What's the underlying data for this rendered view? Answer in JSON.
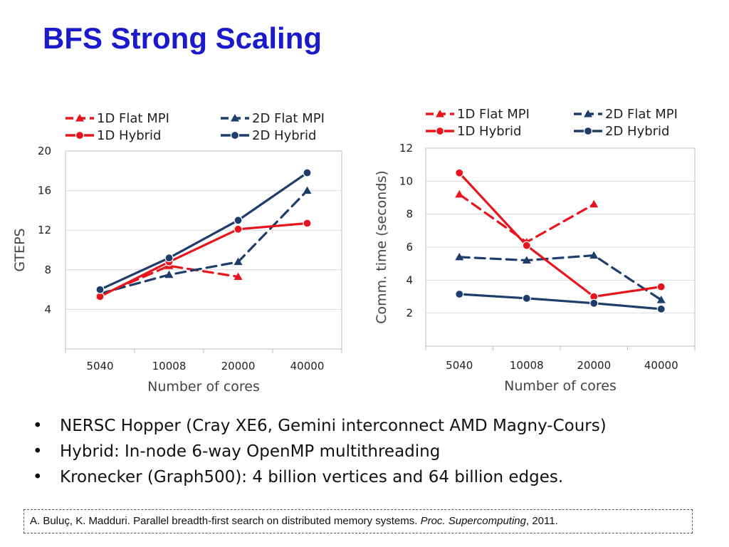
{
  "title": "BFS Strong Scaling",
  "chart_data": [
    {
      "type": "line",
      "title": "",
      "xlabel": "Number of cores",
      "ylabel": "GTEPS",
      "categories": [
        "5040",
        "10008",
        "20000",
        "40000"
      ],
      "y_ticks": [
        "4",
        "8",
        "12",
        "16",
        "20"
      ],
      "ylim": [
        0,
        20
      ],
      "legend_position": "top",
      "series": [
        {
          "name": "1D Flat MPI",
          "color": "#e8141c",
          "dash": true,
          "marker": "triangle",
          "values": [
            5.4,
            8.4,
            7.3,
            null
          ]
        },
        {
          "name": "2D Flat MPI",
          "color": "#1f3d6b",
          "dash": true,
          "marker": "triangle",
          "values": [
            5.6,
            7.5,
            8.8,
            16.0
          ]
        },
        {
          "name": "1D Hybrid",
          "color": "#e8141c",
          "dash": false,
          "marker": "circle",
          "values": [
            5.3,
            8.8,
            12.1,
            12.7
          ]
        },
        {
          "name": "2D Hybrid",
          "color": "#1f3d6b",
          "dash": false,
          "marker": "circle",
          "values": [
            6.0,
            9.2,
            13.0,
            17.8
          ]
        }
      ]
    },
    {
      "type": "line",
      "title": "",
      "xlabel": "Number of cores",
      "ylabel": "Comm. time (seconds)",
      "categories": [
        "5040",
        "10008",
        "20000",
        "40000"
      ],
      "y_ticks": [
        "2",
        "4",
        "6",
        "8",
        "10",
        "12"
      ],
      "ylim": [
        0,
        12
      ],
      "legend_position": "top",
      "series": [
        {
          "name": "1D Flat MPI",
          "color": "#e8141c",
          "dash": true,
          "marker": "triangle",
          "values": [
            9.2,
            6.3,
            8.6,
            null
          ]
        },
        {
          "name": "2D Flat MPI",
          "color": "#1f3d6b",
          "dash": true,
          "marker": "triangle",
          "values": [
            5.4,
            5.2,
            5.5,
            2.8
          ]
        },
        {
          "name": "1D Hybrid",
          "color": "#e8141c",
          "dash": false,
          "marker": "circle",
          "values": [
            10.5,
            6.1,
            3.0,
            3.6
          ]
        },
        {
          "name": "2D Hybrid",
          "color": "#1f3d6b",
          "dash": false,
          "marker": "circle",
          "values": [
            3.15,
            2.9,
            2.6,
            2.25
          ]
        }
      ]
    }
  ],
  "bullets": [
    "NERSC Hopper (Cray XE6, Gemini interconnect AMD Magny-Cours)",
    "Hybrid: In-node 6-way OpenMP multithreading",
    "Kronecker (Graph500): 4 billion vertices and 64 billion edges."
  ],
  "bullet_glyph": "•",
  "citation": {
    "prefix": "A. Buluç, K. Madduri. Parallel breadth-first search on distributed memory systems. ",
    "venue": "Proc. Supercomputing",
    "suffix": ", 2011."
  }
}
